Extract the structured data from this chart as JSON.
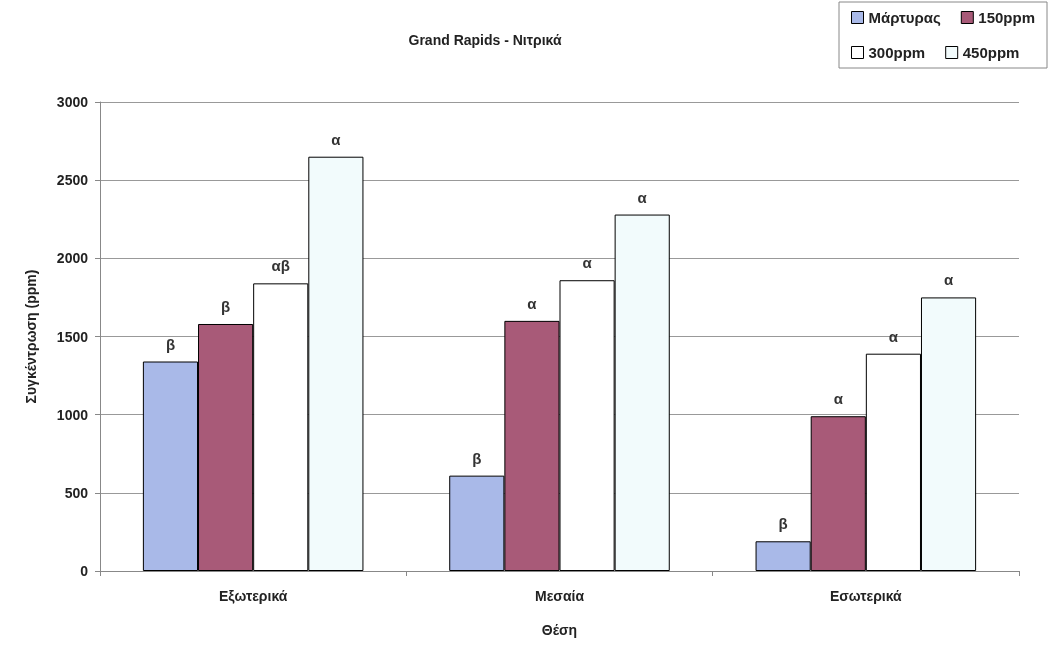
{
  "chart_data": {
    "type": "bar",
    "title": "Grand Rapids - Νιτρικά",
    "xlabel": "Θέση",
    "ylabel": "Συγκέντρωση (ppm)",
    "categories": [
      "Εξωτερικά",
      "Μεσαία",
      "Εσωτερικά"
    ],
    "series": [
      {
        "name": "Μάρτυρας",
        "color": "#a9b9e8",
        "values": [
          1340,
          610,
          190
        ],
        "value_labels": [
          "β",
          "β",
          "β"
        ]
      },
      {
        "name": "150ppm",
        "color": "#a85a78",
        "values": [
          1580,
          1600,
          990
        ],
        "value_labels": [
          "β",
          "α",
          "α"
        ]
      },
      {
        "name": "300ppm",
        "color": "#ffffff",
        "values": [
          1840,
          1860,
          1390
        ],
        "value_labels": [
          "αβ",
          "α",
          "α"
        ]
      },
      {
        "name": "450ppm",
        "color": "#f2fbfc",
        "values": [
          2650,
          2280,
          1750
        ],
        "value_labels": [
          "α",
          "α",
          "α"
        ]
      }
    ],
    "ylim": [
      0,
      3000
    ],
    "yticks": [
      0,
      500,
      1000,
      1500,
      2000,
      2500,
      3000
    ],
    "grid": "y",
    "legend": "top right"
  }
}
